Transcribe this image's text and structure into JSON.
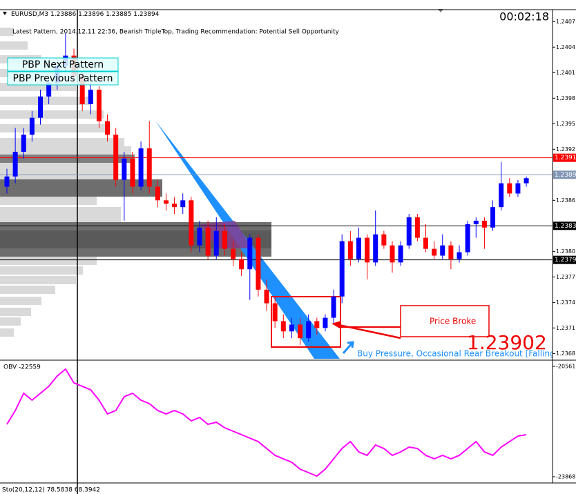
{
  "window": {
    "clock": "00:02:18",
    "buttons": [
      "PBP Next Pattern",
      "PBP Previous Pattern"
    ],
    "pattern_note": "Latest Pattern, 2014.12.11 22:36, Bearish TripleTop, Trading Recommendation: Potential Sell Opportunity",
    "callout": "Price Broke",
    "price_note": "1.23902",
    "pressure_note": "Buy Pressure, Occasional Rear Breakout [Falling",
    "stochastic": "Sto(20,12,12) 78.5838 68.3942"
  },
  "chart_data": [
    {
      "type": "candlestick",
      "title": "EURUSD,M3",
      "quote": [
        1.23886,
        1.23896,
        1.23885,
        1.23894
      ],
      "open": [
        1.23876,
        1.23888,
        1.23917,
        1.23937,
        1.23957,
        1.23982,
        1.23998,
        1.24018,
        1.2403,
        1.24006,
        1.23973,
        1.2399,
        1.23953,
        1.23937,
        1.23884,
        1.23909,
        1.23876,
        1.23921,
        1.23876,
        1.2386,
        1.23856,
        1.23852,
        1.2386,
        1.23807,
        1.23828,
        1.23795,
        1.23824,
        1.23803,
        1.23791,
        1.23779,
        1.23816,
        1.23755,
        1.23739,
        1.23718,
        1.23706,
        1.23714,
        1.23698,
        1.23718,
        1.2371,
        1.23722,
        1.23747,
        1.23812,
        1.23791,
        1.23816,
        1.23787,
        1.2382,
        1.23807,
        1.23787,
        1.23807,
        1.2384,
        1.23816,
        1.23803,
        1.23795,
        1.23807,
        1.23791,
        1.23799,
        1.23832,
        1.23836,
        1.23828,
        1.23852,
        1.2388,
        1.23868,
        1.2388
      ],
      "high": [
        1.23897,
        1.23945,
        1.23945,
        1.23965,
        1.2399,
        1.24006,
        1.24026,
        1.24056,
        1.24038,
        1.2401,
        1.23998,
        1.23994,
        1.23961,
        1.23945,
        1.23917,
        1.23917,
        1.23929,
        1.23953,
        1.23884,
        1.23868,
        1.23864,
        1.23868,
        1.23864,
        1.23836,
        1.23836,
        1.2384,
        1.23832,
        1.23812,
        1.23799,
        1.2382,
        1.2382,
        1.23767,
        1.23747,
        1.23726,
        1.23722,
        1.23722,
        1.23726,
        1.23722,
        1.23726,
        1.23755,
        1.2382,
        1.23824,
        1.23828,
        1.2382,
        1.23848,
        1.23824,
        1.23812,
        1.23812,
        1.23844,
        1.23844,
        1.23832,
        1.23812,
        1.2382,
        1.23812,
        1.23807,
        1.23836,
        1.2384,
        1.2384,
        1.2386,
        1.23905,
        1.23886,
        1.23884,
        1.23888
      ],
      "low": [
        1.23868,
        1.2388,
        1.23909,
        1.23929,
        1.23949,
        1.23973,
        1.2399,
        1.2401,
        1.23998,
        1.23965,
        1.23961,
        1.23945,
        1.23929,
        1.23876,
        1.23836,
        1.23868,
        1.23872,
        1.23868,
        1.23852,
        1.23848,
        1.23844,
        1.23844,
        1.23799,
        1.23799,
        1.23791,
        1.23791,
        1.23795,
        1.23783,
        1.23771,
        1.23743,
        1.23747,
        1.2373,
        1.2371,
        1.23698,
        1.23698,
        1.2369,
        1.23694,
        1.23702,
        1.23706,
        1.23714,
        1.23739,
        1.23783,
        1.23787,
        1.23767,
        1.23783,
        1.23803,
        1.23775,
        1.23783,
        1.23803,
        1.23812,
        1.23799,
        1.23791,
        1.23791,
        1.23779,
        1.23787,
        1.23795,
        1.23816,
        1.23803,
        1.23824,
        1.23848,
        1.23864,
        1.23864,
        1.23876
      ],
      "close": [
        1.23888,
        1.23917,
        1.23937,
        1.23957,
        1.23982,
        1.23998,
        1.24018,
        1.2403,
        1.24006,
        1.23973,
        1.2399,
        1.23953,
        1.23937,
        1.23884,
        1.23909,
        1.23876,
        1.23921,
        1.23876,
        1.2386,
        1.23856,
        1.23852,
        1.2386,
        1.23807,
        1.23828,
        1.23795,
        1.23824,
        1.23803,
        1.23791,
        1.23779,
        1.23816,
        1.23755,
        1.23739,
        1.23718,
        1.23706,
        1.23714,
        1.23698,
        1.23718,
        1.2371,
        1.23722,
        1.23747,
        1.23812,
        1.23791,
        1.23816,
        1.23787,
        1.2382,
        1.23807,
        1.23787,
        1.23807,
        1.2384,
        1.23816,
        1.23803,
        1.23795,
        1.23807,
        1.23791,
        1.23799,
        1.23832,
        1.23836,
        1.23828,
        1.23852,
        1.2388,
        1.23868,
        1.2388,
        1.23886
      ],
      "up_color": "#0000ff",
      "down_color": "#ff0000",
      "ylim": [
        1.23673,
        1.24084
      ],
      "yticks": [
        1.2407,
        1.2404,
        1.2401,
        1.2398,
        1.2395,
        1.2392,
        1.2386,
        {
          "value": 1.238,
          "label": "1.2380"
        },
        1.2377,
        1.2374,
        1.2371,
        1.2368
      ],
      "levels": [
        {
          "value": 1.2391,
          "color": "#ff0000"
        },
        {
          "value": 1.2389,
          "color": "#8096b4"
        },
        {
          "value": 1.2383,
          "color": "#000000"
        },
        {
          "value": 1.2379,
          "color": "#000000"
        }
      ]
    },
    {
      "type": "line",
      "title": "OBV -22559",
      "color": "#ff00ff",
      "values": [
        -22297,
        -21884,
        -21367,
        -21574,
        -21367,
        -21160,
        -20850,
        -20644,
        -21057,
        -21160,
        -21264,
        -21574,
        -21987,
        -21884,
        -21470,
        -21367,
        -21574,
        -21677,
        -21884,
        -21987,
        -21884,
        -21987,
        -22194,
        -22091,
        -22297,
        -22235,
        -22401,
        -22504,
        -22607,
        -22711,
        -22814,
        -23021,
        -23227,
        -23331,
        -23434,
        -23641,
        -23744,
        -23848,
        -23641,
        -23331,
        -23021,
        -22814,
        -23124,
        -23227,
        -22917,
        -23021,
        -23227,
        -23124,
        -22979,
        -23021,
        -23227,
        -23331,
        -23227,
        -23331,
        -23227,
        -23021,
        -22814,
        -23124,
        -23227,
        -22979,
        -22814,
        -22649,
        -22607
      ],
      "ylim": [
        -24054,
        -20396
      ],
      "yticks": [
        -20561,
        -23868
      ]
    }
  ]
}
